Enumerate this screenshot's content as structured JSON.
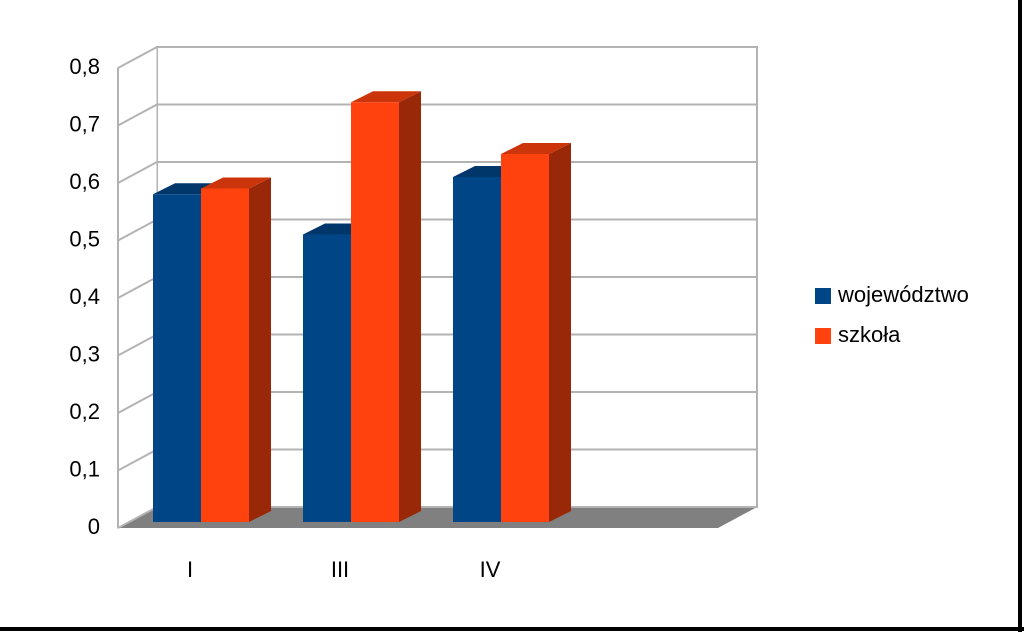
{
  "chart_data": {
    "type": "bar3d",
    "categories": [
      "I",
      "III",
      "IV",
      null
    ],
    "series": [
      {
        "name": "województwo",
        "color": "#004586",
        "values": [
          0.57,
          0.5,
          0.6,
          null
        ]
      },
      {
        "name": "szkoła",
        "color": "#ff420e",
        "values": [
          0.58,
          0.73,
          0.64,
          null
        ]
      }
    ],
    "ylim": [
      0,
      0.8
    ],
    "yticks": [
      0,
      {
        "value": 0.1,
        "label": "0,1"
      },
      {
        "value": 0.2,
        "label": "0,2"
      },
      {
        "value": 0.3,
        "label": "0,3"
      },
      {
        "value": 0.4,
        "label": "0,4"
      },
      {
        "value": 0.5,
        "label": "0,5"
      },
      {
        "value": 0.6,
        "label": "0,6"
      },
      {
        "value": 0.7,
        "label": "0,7"
      },
      {
        "value": 0.8,
        "label": "0,8"
      }
    ],
    "grid": true,
    "legend": "right"
  }
}
